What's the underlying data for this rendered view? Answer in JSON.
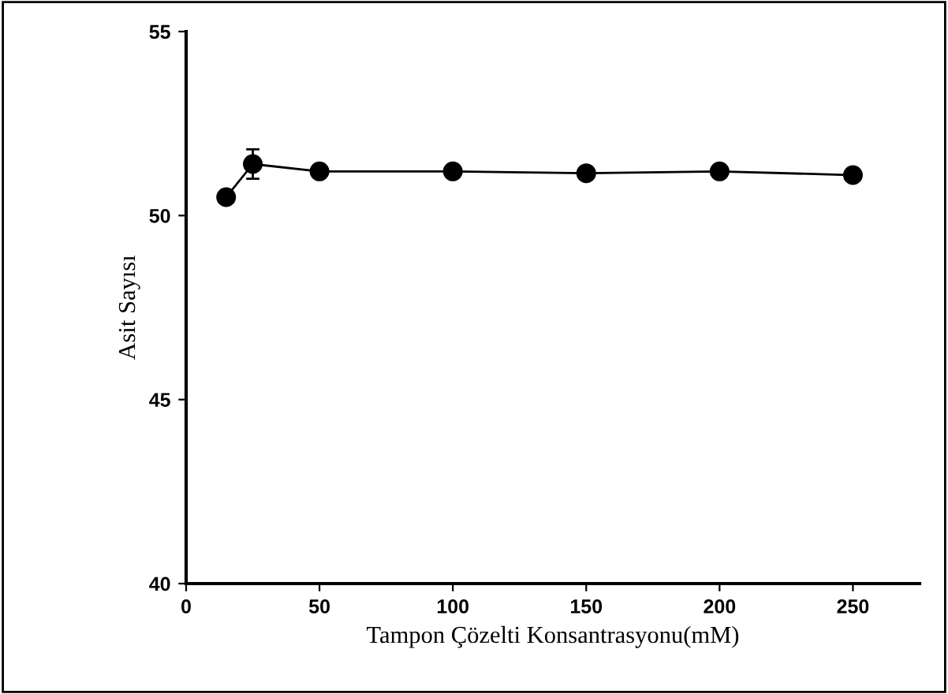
{
  "chart_data": {
    "type": "line",
    "xlabel": "Tampon Çözelti Konsantrasyonu(mM)",
    "ylabel": "Asit Sayısı",
    "x": [
      15,
      25,
      50,
      100,
      150,
      200,
      250
    ],
    "series": [
      {
        "color": "#000000",
        "values": [
          50.5,
          51.4,
          51.2,
          51.2,
          51.15,
          51.2,
          51.1
        ],
        "errors": [
          null,
          0.4,
          0.15,
          null,
          null,
          null,
          null
        ]
      }
    ],
    "xlim": [
      0,
      275
    ],
    "xticks": [
      0,
      50,
      100,
      150,
      200,
      250
    ],
    "ylim": [
      40,
      55
    ],
    "yticks": [
      40,
      45,
      50,
      55
    ],
    "marker": "circle",
    "line_style": "solid",
    "grid": false,
    "legend": false
  }
}
